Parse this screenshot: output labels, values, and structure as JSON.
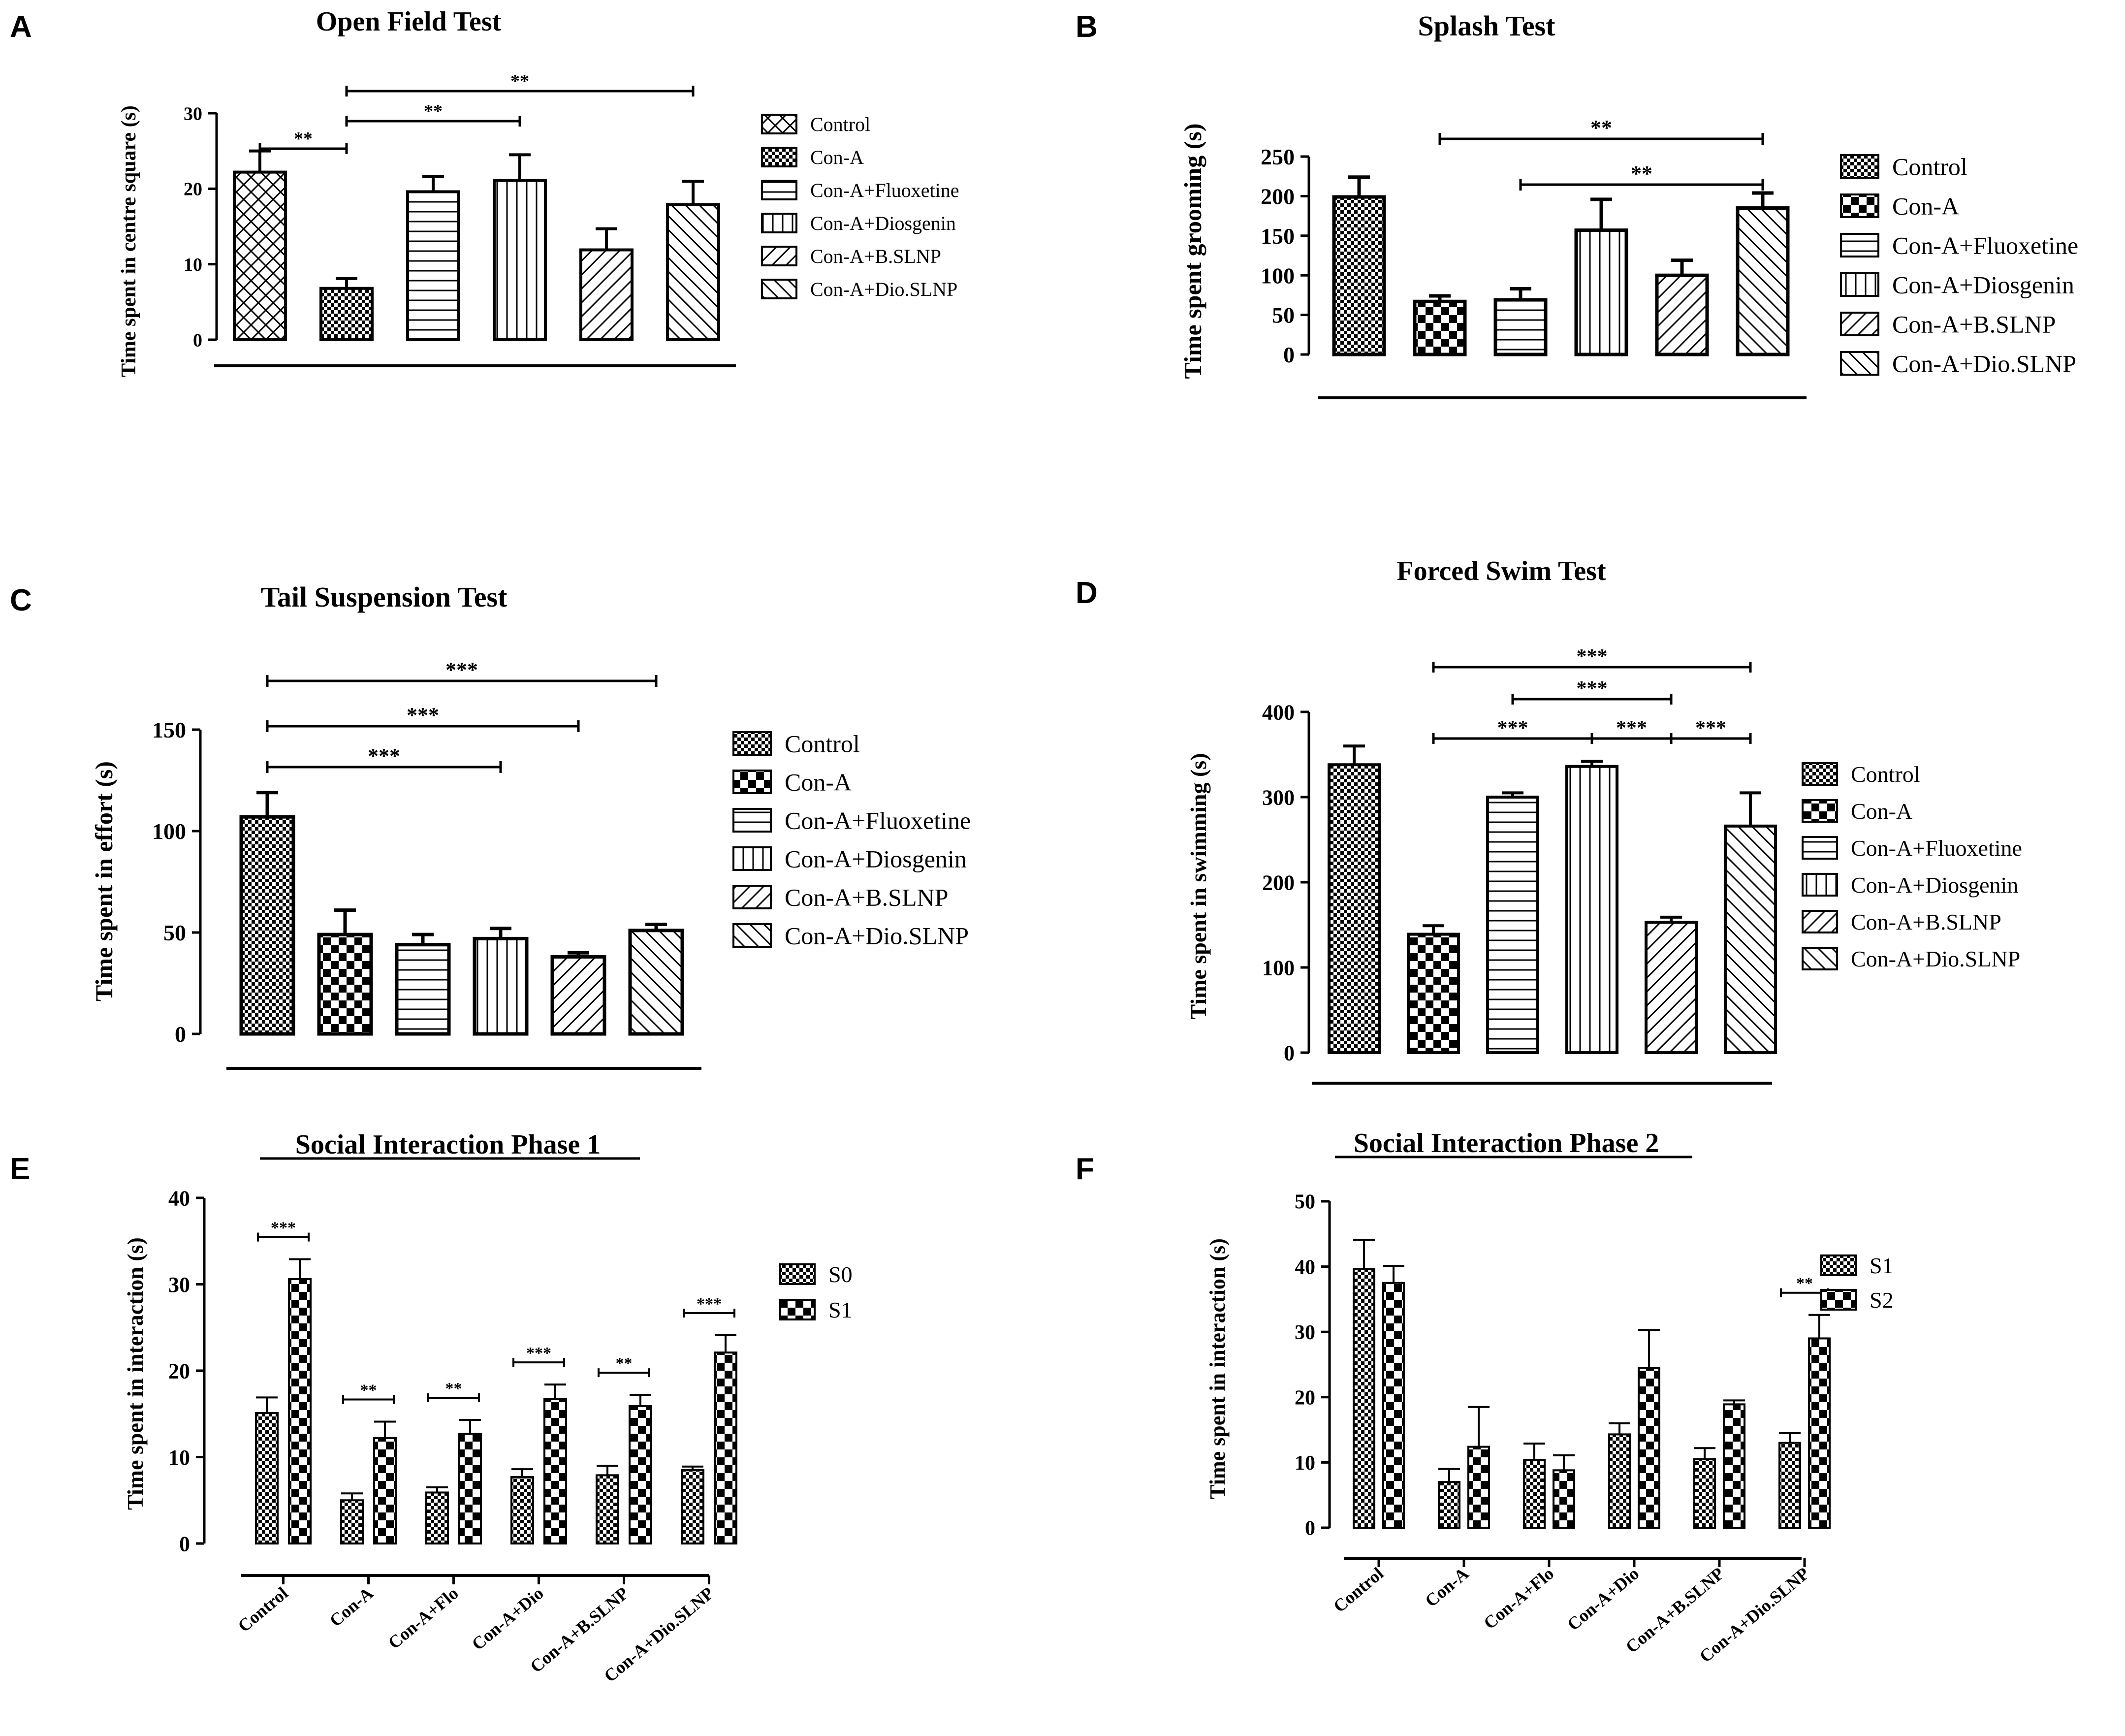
{
  "chart_data": [
    {
      "panel": "A",
      "type": "bar",
      "title": "Open Field Test",
      "title_underline": false,
      "ylabel": "Time spent in centre square (s)",
      "xlabel": "",
      "ylim": [
        0,
        30
      ],
      "yticks": [
        0,
        10,
        20,
        30
      ],
      "grid": false,
      "legend_position": "right",
      "categories": [
        "Control",
        "Con-A",
        "Con-A+Fluoxetine",
        "Con-A+Diosgenin",
        "Con-A+B.SLNP",
        "Con-A+Dio.SLNP"
      ],
      "values": [
        22.2,
        6.8,
        19.6,
        21.1,
        11.9,
        17.9
      ],
      "errors": [
        2.8,
        1.3,
        2.0,
        3.4,
        2.8,
        3.1
      ],
      "significance": [
        {
          "from": 0,
          "to": 1,
          "label": "**"
        },
        {
          "from": 1,
          "to": 3,
          "label": "**"
        },
        {
          "from": 1,
          "to": 5,
          "label": "**"
        }
      ]
    },
    {
      "panel": "B",
      "type": "bar",
      "title": "Splash Test",
      "title_underline": false,
      "ylabel": "Time spent grooming (s)",
      "xlabel": "",
      "ylim": [
        0,
        250
      ],
      "yticks": [
        0,
        50,
        100,
        150,
        200,
        250
      ],
      "grid": false,
      "legend_position": "right",
      "categories": [
        "Control",
        "Con-A",
        "Con-A+Fluoxetine",
        "Con-A+Diosgenin",
        "Con-A+B.SLNP",
        "Con-A+Dio.SLNP"
      ],
      "values": [
        199,
        67,
        69,
        157,
        100,
        185
      ],
      "errors": [
        25,
        7,
        14,
        39,
        19,
        19
      ],
      "significance": [
        {
          "from": 1,
          "to": 5,
          "label": "**"
        },
        {
          "from": 2,
          "to": 5,
          "label": "**"
        }
      ]
    },
    {
      "panel": "C",
      "type": "bar",
      "title": "Tail Suspension Test",
      "title_underline": false,
      "ylabel": "Time spent in effort (s)",
      "xlabel": "",
      "ylim": [
        0,
        150
      ],
      "yticks": [
        0,
        50,
        100,
        150
      ],
      "grid": false,
      "legend_position": "right",
      "categories": [
        "Control",
        "Con-A",
        "Con-A+Fluoxetine",
        "Con-A+Diosgenin",
        "Con-A+B.SLNP",
        "Con-A+Dio.SLNP"
      ],
      "values": [
        107,
        49,
        44,
        47,
        38,
        51
      ],
      "errors": [
        12,
        12,
        5,
        5,
        2,
        3
      ],
      "significance": [
        {
          "from": 0,
          "to": 3,
          "label": "***"
        },
        {
          "from": 0,
          "to": 4,
          "label": "***"
        },
        {
          "from": 0,
          "to": 5,
          "label": "***"
        }
      ]
    },
    {
      "panel": "D",
      "type": "bar",
      "title": "Forced Swim Test",
      "title_underline": false,
      "ylabel": "Time spent in swimming (s)",
      "xlabel": "",
      "ylim": [
        0,
        400
      ],
      "yticks": [
        0,
        100,
        200,
        300,
        400
      ],
      "grid": false,
      "legend_position": "right",
      "categories": [
        "Control",
        "Con-A",
        "Con-A+Fluoxetine",
        "Con-A+Diosgenin",
        "Con-A+B.SLNP",
        "Con-A+Dio.SLNP"
      ],
      "values": [
        338,
        139,
        300,
        336,
        153,
        266
      ],
      "errors": [
        22,
        10,
        5,
        6,
        6,
        39
      ],
      "significance": [
        {
          "from": 1,
          "to": 5,
          "label": "***"
        },
        {
          "from": 2,
          "to": 4,
          "label": "***"
        },
        {
          "from": 1,
          "to": 3,
          "label": "***"
        },
        {
          "from": 3,
          "to": 4,
          "label": "***"
        },
        {
          "from": 4,
          "to": 5,
          "label": "***"
        }
      ]
    },
    {
      "panel": "E",
      "type": "bar",
      "title": "Social Interaction Phase 1",
      "title_underline": true,
      "ylabel": "Time spent in interaction (s)",
      "xlabel": "",
      "ylim": [
        0,
        40
      ],
      "yticks": [
        0,
        10,
        20,
        30,
        40
      ],
      "grid": false,
      "legend_position": "right",
      "categories": [
        "Control",
        "Con-A",
        "Con-A+Flo",
        "Con-A+Dio",
        "Con-A+B.SLNP",
        "Con-A+Dio.SLNP"
      ],
      "series": [
        {
          "name": "S0",
          "values": [
            15.1,
            5.0,
            5.9,
            7.7,
            7.9,
            8.5
          ],
          "errors": [
            1.8,
            0.8,
            0.6,
            0.9,
            1.1,
            0.4
          ]
        },
        {
          "name": "S1",
          "values": [
            30.6,
            12.2,
            12.7,
            16.7,
            15.9,
            22.1
          ],
          "errors": [
            2.3,
            1.9,
            1.6,
            1.7,
            1.3,
            2.0
          ]
        }
      ],
      "significance": [
        {
          "group": 0,
          "label": "***"
        },
        {
          "group": 1,
          "label": "**"
        },
        {
          "group": 2,
          "label": "**"
        },
        {
          "group": 3,
          "label": "***"
        },
        {
          "group": 4,
          "label": "**"
        },
        {
          "group": 5,
          "label": "***"
        }
      ]
    },
    {
      "panel": "F",
      "type": "bar",
      "title": "Social Interaction Phase 2",
      "title_underline": true,
      "ylabel": "Time spent in interaction (s)",
      "xlabel": "",
      "ylim": [
        0,
        50
      ],
      "yticks": [
        0,
        10,
        20,
        30,
        40,
        50
      ],
      "grid": false,
      "legend_position": "right",
      "categories": [
        "Control",
        "Con-A",
        "Con-A+Flo",
        "Con-A+Dio",
        "Con-A+B.SLNP",
        "Con-A+Dio.SLNP"
      ],
      "series": [
        {
          "name": "S1",
          "values": [
            39.6,
            7.0,
            10.4,
            14.3,
            10.5,
            13.0
          ],
          "errors": [
            4.5,
            2.0,
            2.5,
            1.7,
            1.7,
            1.5
          ]
        },
        {
          "name": "S2",
          "values": [
            37.5,
            12.4,
            8.8,
            24.5,
            18.9,
            29.0
          ],
          "errors": [
            2.6,
            6.1,
            2.3,
            5.8,
            0.6,
            3.6
          ]
        }
      ],
      "significance": [
        {
          "group": 5,
          "label": "**"
        }
      ]
    }
  ]
}
